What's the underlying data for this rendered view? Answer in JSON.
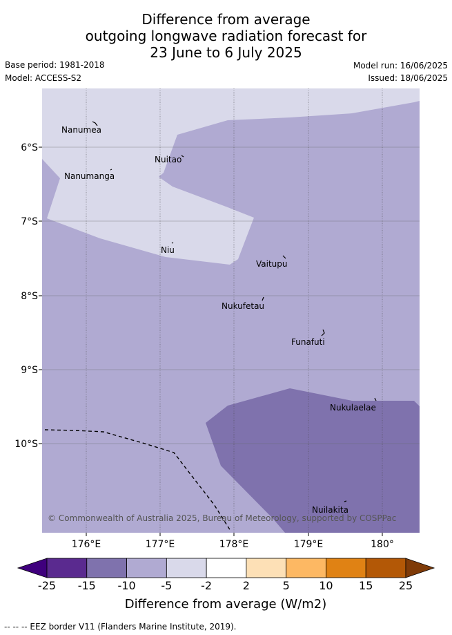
{
  "title": {
    "line1": "Difference from average",
    "line2": "outgoing longwave radiation forecast for",
    "line3": "23 June to 6 July 2025"
  },
  "meta": {
    "base_period": "Base period: 1981-2018",
    "model": "Model: ACCESS-S2",
    "model_run": "Model run: 16/06/2025",
    "issued": "Issued: 18/06/2025"
  },
  "map": {
    "lon_range": [
      175.5,
      180.5
    ],
    "lat_range": [
      -11.2,
      -5.2
    ],
    "x_ticks": [
      "176°E",
      "177°E",
      "178°E",
      "179°E",
      "180°"
    ],
    "y_ticks": [
      "6°S",
      "7°S",
      "8°S",
      "9°S",
      "10°S"
    ],
    "islands": [
      {
        "name": "Nanumea"
      },
      {
        "name": "Nuitao"
      },
      {
        "name": "Nanumanga"
      },
      {
        "name": "Niu"
      },
      {
        "name": "Vaitupu"
      },
      {
        "name": "Nukufetau"
      },
      {
        "name": "Funafuti"
      },
      {
        "name": "Nukulaelae"
      },
      {
        "name": "Nuilakita"
      }
    ],
    "copyright": "© Commonwealth of Australia 2025, Bureau of Meteorology, supported by COSPPac"
  },
  "colorbar": {
    "title": "Difference from average (W/m2)",
    "ticks": [
      "-25",
      "-15",
      "-10",
      "-5",
      "-2",
      "2",
      "5",
      "10",
      "15",
      "25"
    ],
    "colors": [
      "#3f007d",
      "#5a2a8f",
      "#7f72ad",
      "#b0aad2",
      "#d9d9ea",
      "#ffffff",
      "#fde0b6",
      "#fdb863",
      "#e08214",
      "#b35806",
      "#7f3b08"
    ]
  },
  "legend_note": "-- -- -- EEZ border V11 (Flanders Marine Institute, 2019)."
}
